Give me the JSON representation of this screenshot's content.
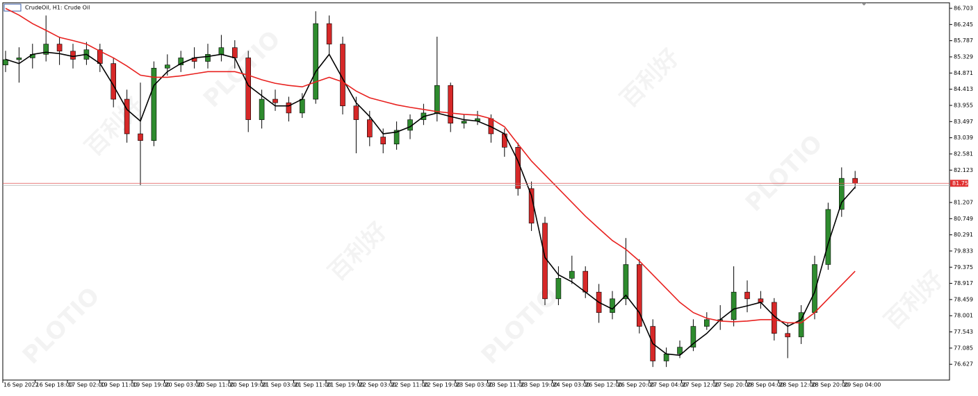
{
  "chart_data": {
    "type": "candlestick",
    "title": "CrudeOil, H1:  Crude Oil",
    "watermark": [
      "百利好",
      "PLOTIO"
    ],
    "up_color": "#2e8b2e",
    "down_color": "#d62828",
    "ylim": [
      76.18,
      86.86
    ],
    "yticks": [
      86.703,
      86.245,
      85.787,
      85.329,
      84.871,
      84.413,
      83.955,
      83.497,
      83.039,
      82.581,
      82.123,
      81.207,
      80.749,
      80.291,
      79.833,
      79.375,
      78.917,
      78.459,
      78.001,
      77.543,
      77.085,
      76.627
    ],
    "xtick_labels": [
      "16 Sep 2022",
      "16 Sep 18:00",
      "17 Sep 02:00",
      "19 Sep 11:00",
      "19 Sep 19:00",
      "20 Sep 03:00",
      "20 Sep 11:00",
      "20 Sep 19:00",
      "21 Sep 03:00",
      "21 Sep 11:00",
      "21 Sep 19:00",
      "22 Sep 03:00",
      "22 Sep 11:00",
      "22 Sep 19:00",
      "23 Sep 03:00",
      "23 Sep 11:00",
      "23 Sep 19:00",
      "24 Sep 03:00",
      "26 Sep 12:00",
      "26 Sep 20:00",
      "27 Sep 04:00",
      "27 Sep 12:00",
      "27 Sep 20:00",
      "28 Sep 04:00",
      "28 Sep 12:00",
      "28 Sep 20:00",
      "29 Sep 04:00"
    ],
    "last_price": 81.75,
    "candles": [
      [
        85.1,
        85.5,
        84.9,
        85.25
      ],
      [
        85.25,
        85.6,
        84.6,
        85.3
      ],
      [
        85.3,
        85.7,
        85.0,
        85.4
      ],
      [
        85.4,
        86.5,
        85.2,
        85.69
      ],
      [
        85.69,
        85.9,
        85.1,
        85.49
      ],
      [
        85.49,
        85.7,
        85.0,
        85.26
      ],
      [
        85.26,
        85.75,
        85.1,
        85.53
      ],
      [
        85.53,
        85.7,
        84.9,
        85.14
      ],
      [
        85.14,
        85.3,
        83.9,
        84.13
      ],
      [
        84.13,
        84.4,
        82.9,
        83.15
      ],
      [
        83.15,
        84.6,
        81.7,
        82.96
      ],
      [
        82.96,
        85.2,
        82.8,
        85.01
      ],
      [
        85.01,
        85.4,
        84.8,
        85.1
      ],
      [
        85.1,
        85.5,
        84.9,
        85.3
      ],
      [
        85.3,
        85.6,
        85.0,
        85.2
      ],
      [
        85.2,
        85.7,
        85.0,
        85.4
      ],
      [
        85.4,
        85.95,
        85.2,
        85.59
      ],
      [
        85.59,
        85.8,
        85.0,
        85.3
      ],
      [
        85.3,
        85.5,
        83.2,
        83.55
      ],
      [
        83.55,
        84.4,
        83.3,
        84.13
      ],
      [
        84.13,
        84.4,
        83.8,
        84.03
      ],
      [
        84.03,
        84.2,
        83.5,
        83.74
      ],
      [
        83.74,
        84.3,
        83.6,
        84.13
      ],
      [
        84.13,
        86.62,
        84.0,
        86.27
      ],
      [
        86.27,
        86.5,
        85.4,
        85.69
      ],
      [
        85.69,
        85.9,
        83.7,
        83.94
      ],
      [
        83.94,
        84.2,
        82.6,
        83.55
      ],
      [
        83.55,
        83.8,
        82.8,
        83.06
      ],
      [
        83.06,
        83.3,
        82.6,
        82.86
      ],
      [
        82.86,
        83.5,
        82.7,
        83.25
      ],
      [
        83.25,
        83.7,
        83.0,
        83.55
      ],
      [
        83.55,
        84.0,
        83.4,
        83.74
      ],
      [
        83.74,
        85.9,
        83.5,
        84.52
      ],
      [
        84.52,
        84.6,
        83.2,
        83.45
      ],
      [
        83.45,
        83.7,
        83.3,
        83.51
      ],
      [
        83.51,
        83.8,
        83.4,
        83.58
      ],
      [
        83.58,
        83.7,
        82.9,
        83.15
      ],
      [
        83.15,
        83.3,
        82.5,
        82.77
      ],
      [
        82.77,
        82.9,
        81.4,
        81.6
      ],
      [
        81.6,
        81.8,
        80.4,
        80.62
      ],
      [
        80.62,
        80.8,
        78.3,
        78.48
      ],
      [
        78.48,
        79.4,
        78.3,
        79.06
      ],
      [
        79.06,
        79.7,
        78.9,
        79.26
      ],
      [
        79.26,
        79.4,
        78.5,
        78.67
      ],
      [
        78.67,
        78.9,
        77.8,
        78.09
      ],
      [
        78.09,
        78.7,
        77.9,
        78.48
      ],
      [
        78.48,
        80.2,
        78.3,
        79.45
      ],
      [
        79.45,
        79.6,
        77.5,
        77.7
      ],
      [
        77.7,
        77.9,
        76.55,
        76.72
      ],
      [
        76.72,
        77.1,
        76.55,
        76.92
      ],
      [
        76.92,
        77.3,
        76.8,
        77.11
      ],
      [
        77.11,
        77.9,
        77.0,
        77.7
      ],
      [
        77.7,
        78.1,
        77.6,
        77.89
      ],
      [
        77.89,
        78.3,
        77.6,
        77.89
      ],
      [
        77.89,
        79.4,
        77.7,
        78.67
      ],
      [
        78.67,
        79.0,
        78.1,
        78.48
      ],
      [
        78.48,
        78.7,
        78.2,
        78.38
      ],
      [
        78.38,
        78.5,
        77.3,
        77.5
      ],
      [
        77.5,
        77.8,
        76.8,
        77.4
      ],
      [
        77.4,
        78.3,
        77.2,
        78.09
      ],
      [
        78.09,
        79.7,
        77.9,
        79.45
      ],
      [
        79.45,
        81.2,
        79.3,
        81.01
      ],
      [
        81.01,
        82.2,
        80.8,
        81.89
      ],
      [
        81.89,
        82.1,
        81.6,
        81.75
      ]
    ],
    "series": [
      {
        "color": "#000000",
        "values": [
          85.26,
          85.14,
          85.4,
          85.46,
          85.42,
          85.34,
          85.4,
          85.14,
          84.52,
          83.84,
          83.51,
          84.52,
          84.91,
          85.14,
          85.3,
          85.34,
          85.4,
          85.3,
          84.52,
          84.23,
          83.94,
          83.94,
          84.13,
          84.91,
          85.4,
          84.71,
          84.03,
          83.64,
          83.15,
          83.2,
          83.35,
          83.64,
          83.74,
          83.64,
          83.55,
          83.51,
          83.35,
          83.15,
          82.38,
          81.4,
          79.65,
          79.16,
          78.96,
          78.67,
          78.38,
          78.19,
          78.58,
          78.09,
          77.21,
          76.92,
          76.88,
          77.21,
          77.5,
          77.89,
          78.19,
          78.28,
          78.38,
          77.99,
          77.7,
          77.89,
          78.67,
          80.04,
          81.21,
          81.64
        ]
      },
      {
        "color": "#e8211f",
        "values": [
          86.7,
          86.51,
          86.27,
          86.08,
          85.88,
          85.79,
          85.69,
          85.49,
          85.3,
          85.07,
          84.81,
          84.75,
          84.75,
          84.79,
          84.85,
          84.91,
          84.91,
          84.91,
          84.81,
          84.68,
          84.58,
          84.52,
          84.48,
          84.62,
          84.75,
          84.62,
          84.36,
          84.17,
          84.07,
          83.97,
          83.9,
          83.84,
          83.78,
          83.74,
          83.7,
          83.68,
          83.58,
          83.35,
          82.86,
          82.38,
          81.99,
          81.6,
          81.21,
          80.82,
          80.47,
          80.13,
          79.88,
          79.55,
          79.16,
          78.77,
          78.38,
          78.09,
          77.93,
          77.85,
          77.83,
          77.85,
          77.89,
          77.89,
          77.8,
          77.8,
          78.09,
          78.48,
          78.87,
          79.26
        ]
      }
    ]
  }
}
